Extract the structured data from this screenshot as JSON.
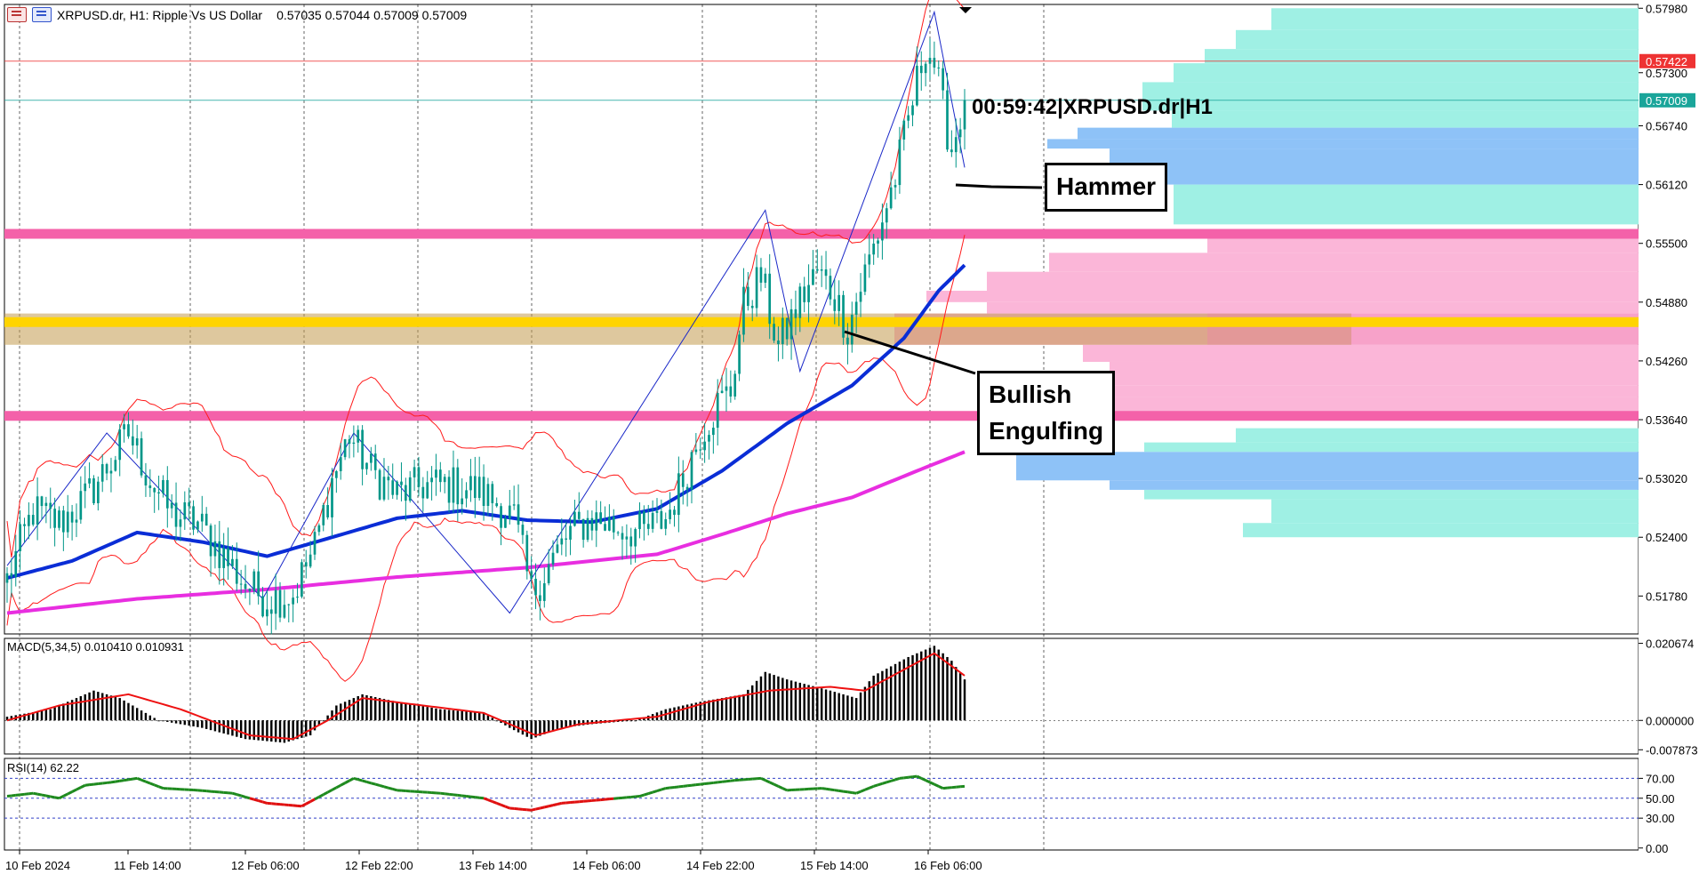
{
  "header": {
    "symbol_title": "XRPUSD.dr, H1:  Ripple Vs US Dollar",
    "ohlc": "0.57035 0.57044 0.57009 0.57009",
    "timer": "00:59:42|XRPUSD.dr|H1"
  },
  "annotations": {
    "hammer": "Hammer",
    "bullish_line1": "Bullish",
    "bullish_line2": "Engulfing"
  },
  "indicators": {
    "macd_label": "MACD(5,34,5) 0.010410 0.010931",
    "rsi_label": "RSI(14) 62.22"
  },
  "colors": {
    "candle": "#009688",
    "bollinger": "#ff1a1a",
    "ma_blue": "#0a2dd6",
    "ma_magenta": "#e82ee0",
    "support_pink": "#f461a9",
    "support_gold": "#ffd400",
    "zone_tan": "#c39a4e",
    "vp_cyan": "#9ff0e4",
    "vp_blue": "#8ec2f7",
    "vp_pink": "#fbb6d8",
    "macd_hist": "#000000",
    "macd_signal": "#ee1111",
    "rsi_up": "#1e8a1e",
    "rsi_down": "#e01010"
  },
  "chart_data": {
    "type": "candlestick",
    "symbol": "XRPUSD.dr",
    "timeframe": "H1",
    "y_range": [
      0.5138,
      0.5802
    ],
    "price_ticks": [
      "0.57980",
      "0.57300",
      "0.56740",
      "0.56120",
      "0.55500",
      "0.54880",
      "0.54260",
      "0.53640",
      "0.53020",
      "0.52400",
      "0.51780"
    ],
    "price_markers": [
      {
        "label": "0.57422",
        "value": 0.57422,
        "color": "#ee3333"
      },
      {
        "label": "0.57009",
        "value": 0.57009,
        "color": "#1aa59a"
      }
    ],
    "time_labels": [
      "10 Feb 2024",
      "11 Feb 14:00",
      "12 Feb 06:00",
      "12 Feb 22:00",
      "13 Feb 14:00",
      "14 Feb 06:00",
      "14 Feb 22:00",
      "15 Feb 14:00",
      "16 Feb 06:00"
    ],
    "key_levels": {
      "resistance": 0.556,
      "mid_level": 0.5467,
      "support": 0.5368,
      "zone": [
        0.5443,
        0.5476
      ]
    },
    "price_path": [
      [
        0,
        0.5195
      ],
      [
        6,
        0.5268
      ],
      [
        12,
        0.5255
      ],
      [
        18,
        0.528
      ],
      [
        24,
        0.532
      ],
      [
        28,
        0.535
      ],
      [
        33,
        0.53
      ],
      [
        38,
        0.5265
      ],
      [
        44,
        0.5255
      ],
      [
        50,
        0.522
      ],
      [
        55,
        0.519
      ],
      [
        60,
        0.5175
      ],
      [
        66,
        0.518
      ],
      [
        71,
        0.523
      ],
      [
        75,
        0.53
      ],
      [
        79,
        0.5348
      ],
      [
        84,
        0.531
      ],
      [
        90,
        0.5285
      ],
      [
        96,
        0.5295
      ],
      [
        102,
        0.5295
      ],
      [
        108,
        0.529
      ],
      [
        112,
        0.528
      ],
      [
        117,
        0.526
      ],
      [
        121,
        0.518
      ],
      [
        125,
        0.521
      ],
      [
        130,
        0.5245
      ],
      [
        135,
        0.526
      ],
      [
        141,
        0.525
      ],
      [
        147,
        0.5245
      ],
      [
        152,
        0.526
      ],
      [
        156,
        0.53
      ],
      [
        160,
        0.535
      ],
      [
        164,
        0.538
      ],
      [
        167,
        0.5395
      ],
      [
        170,
        0.5485
      ],
      [
        174,
        0.5515
      ],
      [
        178,
        0.544
      ],
      [
        183,
        0.549
      ],
      [
        187,
        0.552
      ],
      [
        191,
        0.5495
      ],
      [
        194,
        0.546
      ],
      [
        197,
        0.5505
      ],
      [
        201,
        0.556
      ],
      [
        205,
        0.562
      ],
      [
        209,
        0.57
      ],
      [
        212,
        0.576
      ],
      [
        214,
        0.574
      ],
      [
        216,
        0.569
      ],
      [
        218,
        0.565
      ],
      [
        220,
        0.5685
      ],
      [
        221,
        0.5701
      ]
    ],
    "zigzag": [
      [
        0,
        0.521
      ],
      [
        23,
        0.535
      ],
      [
        59,
        0.5175
      ],
      [
        80,
        0.535
      ],
      [
        116,
        0.516
      ],
      [
        175,
        0.5585
      ],
      [
        183,
        0.5415
      ],
      [
        214,
        0.5794
      ],
      [
        221,
        0.563
      ]
    ],
    "ma_blue": [
      [
        0,
        0.5197
      ],
      [
        15,
        0.5215
      ],
      [
        30,
        0.5245
      ],
      [
        45,
        0.5235
      ],
      [
        60,
        0.522
      ],
      [
        75,
        0.524
      ],
      [
        90,
        0.526
      ],
      [
        105,
        0.5268
      ],
      [
        120,
        0.5258
      ],
      [
        135,
        0.5256
      ],
      [
        150,
        0.527
      ],
      [
        165,
        0.531
      ],
      [
        180,
        0.536
      ],
      [
        195,
        0.54
      ],
      [
        207,
        0.545
      ],
      [
        215,
        0.55
      ],
      [
        221,
        0.5527
      ]
    ],
    "ma_magenta": [
      [
        0,
        0.516
      ],
      [
        30,
        0.5175
      ],
      [
        60,
        0.5185
      ],
      [
        90,
        0.5198
      ],
      [
        120,
        0.5208
      ],
      [
        150,
        0.5222
      ],
      [
        165,
        0.5243
      ],
      [
        180,
        0.5265
      ],
      [
        195,
        0.5282
      ],
      [
        210,
        0.531
      ],
      [
        221,
        0.533
      ]
    ],
    "volume_profile": [
      {
        "low": 0.5775,
        "high": 0.5798,
        "x": 1430,
        "color": "cyan"
      },
      {
        "low": 0.5755,
        "high": 0.5775,
        "x": 1390,
        "color": "cyan"
      },
      {
        "low": 0.574,
        "high": 0.5755,
        "x": 1355,
        "color": "cyan"
      },
      {
        "low": 0.572,
        "high": 0.574,
        "x": 1320,
        "color": "cyan"
      },
      {
        "low": 0.569,
        "high": 0.572,
        "x": 1285,
        "color": "cyan"
      },
      {
        "low": 0.5672,
        "high": 0.569,
        "x": 1318,
        "color": "cyan"
      },
      {
        "low": 0.566,
        "high": 0.5672,
        "x": 1212,
        "color": "blue"
      },
      {
        "low": 0.565,
        "high": 0.566,
        "x": 1178,
        "color": "blue"
      },
      {
        "low": 0.5612,
        "high": 0.565,
        "x": 1248,
        "color": "blue"
      },
      {
        "low": 0.557,
        "high": 0.5612,
        "x": 1320,
        "color": "cyan"
      },
      {
        "low": 0.554,
        "high": 0.5555,
        "x": 1358,
        "color": "pink"
      },
      {
        "low": 0.552,
        "high": 0.554,
        "x": 1180,
        "color": "pink"
      },
      {
        "low": 0.55,
        "high": 0.552,
        "x": 1110,
        "color": "pink"
      },
      {
        "low": 0.5488,
        "high": 0.55,
        "x": 1042,
        "color": "pink"
      },
      {
        "low": 0.5476,
        "high": 0.5488,
        "x": 1110,
        "color": "pink"
      },
      {
        "low": 0.5443,
        "high": 0.5476,
        "x": 1006,
        "color": "pink"
      },
      {
        "low": 0.5425,
        "high": 0.5443,
        "x": 1218,
        "color": "pink"
      },
      {
        "low": 0.54,
        "high": 0.5425,
        "x": 1248,
        "color": "pink"
      },
      {
        "low": 0.5388,
        "high": 0.54,
        "x": 1215,
        "color": "pink"
      },
      {
        "low": 0.5368,
        "high": 0.5388,
        "x": 1180,
        "color": "pink"
      },
      {
        "low": 0.534,
        "high": 0.5355,
        "x": 1390,
        "color": "cyan"
      },
      {
        "low": 0.533,
        "high": 0.534,
        "x": 1287,
        "color": "cyan"
      },
      {
        "low": 0.53,
        "high": 0.533,
        "x": 1143,
        "color": "blue"
      },
      {
        "low": 0.529,
        "high": 0.53,
        "x": 1248,
        "color": "blue"
      },
      {
        "low": 0.528,
        "high": 0.529,
        "x": 1287,
        "color": "cyan"
      },
      {
        "low": 0.5255,
        "high": 0.528,
        "x": 1430,
        "color": "cyan"
      },
      {
        "low": 0.524,
        "high": 0.5255,
        "x": 1398,
        "color": "cyan"
      }
    ],
    "macd": {
      "y_range": [
        -0.009,
        0.022
      ],
      "ticks": [
        "0.020674",
        "0.000000",
        "-0.007873"
      ],
      "hist_path": [
        [
          0,
          0.001
        ],
        [
          10,
          0.003
        ],
        [
          20,
          0.008
        ],
        [
          26,
          0.006
        ],
        [
          35,
          0.0
        ],
        [
          45,
          -0.002
        ],
        [
          55,
          -0.005
        ],
        [
          64,
          -0.006
        ],
        [
          70,
          -0.004
        ],
        [
          76,
          0.004
        ],
        [
          82,
          0.007
        ],
        [
          90,
          0.005
        ],
        [
          100,
          0.003
        ],
        [
          110,
          0.002
        ],
        [
          116,
          -0.002
        ],
        [
          121,
          -0.005
        ],
        [
          128,
          -0.002
        ],
        [
          135,
          -0.001
        ],
        [
          145,
          0.0
        ],
        [
          152,
          0.003
        ],
        [
          160,
          0.005
        ],
        [
          170,
          0.007
        ],
        [
          175,
          0.013
        ],
        [
          180,
          0.011
        ],
        [
          190,
          0.008
        ],
        [
          196,
          0.006
        ],
        [
          200,
          0.012
        ],
        [
          208,
          0.017
        ],
        [
          214,
          0.02
        ],
        [
          218,
          0.016
        ],
        [
          221,
          0.011
        ]
      ],
      "signal_path": [
        [
          0,
          0.0
        ],
        [
          12,
          0.004
        ],
        [
          28,
          0.007
        ],
        [
          40,
          0.003
        ],
        [
          56,
          -0.004
        ],
        [
          66,
          -0.005
        ],
        [
          74,
          0.0
        ],
        [
          82,
          0.006
        ],
        [
          96,
          0.004
        ],
        [
          110,
          0.002
        ],
        [
          122,
          -0.004
        ],
        [
          132,
          -0.001
        ],
        [
          150,
          0.001
        ],
        [
          162,
          0.005
        ],
        [
          176,
          0.008
        ],
        [
          190,
          0.009
        ],
        [
          198,
          0.008
        ],
        [
          206,
          0.013
        ],
        [
          214,
          0.018
        ],
        [
          221,
          0.012
        ]
      ]
    },
    "rsi": {
      "y_range": [
        -2,
        90
      ],
      "ticks": [
        "70.00",
        "50.00",
        "30.00",
        "0.00"
      ],
      "path": [
        [
          0,
          52
        ],
        [
          6,
          55
        ],
        [
          12,
          50
        ],
        [
          18,
          63
        ],
        [
          24,
          66
        ],
        [
          30,
          70
        ],
        [
          36,
          60
        ],
        [
          44,
          58
        ],
        [
          52,
          55
        ],
        [
          60,
          45
        ],
        [
          68,
          42
        ],
        [
          74,
          56
        ],
        [
          80,
          70
        ],
        [
          90,
          58
        ],
        [
          100,
          55
        ],
        [
          110,
          50
        ],
        [
          116,
          40
        ],
        [
          121,
          38
        ],
        [
          128,
          45
        ],
        [
          136,
          48
        ],
        [
          146,
          52
        ],
        [
          152,
          60
        ],
        [
          160,
          64
        ],
        [
          168,
          68
        ],
        [
          174,
          70
        ],
        [
          180,
          58
        ],
        [
          188,
          60
        ],
        [
          196,
          55
        ],
        [
          200,
          62
        ],
        [
          206,
          70
        ],
        [
          210,
          72
        ],
        [
          216,
          60
        ],
        [
          221,
          62
        ]
      ]
    }
  }
}
